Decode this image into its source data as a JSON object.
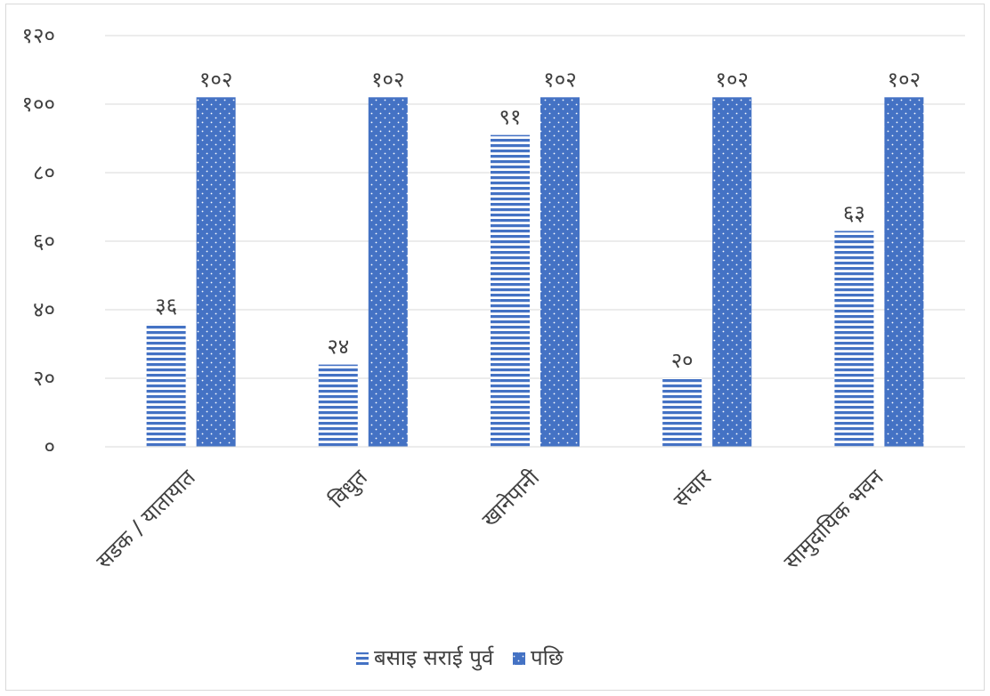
{
  "chart_data": {
    "type": "bar",
    "title": "",
    "xlabel": "",
    "ylabel": "",
    "categories": [
      "सडक / यातायात",
      "विधुत",
      "खानेपानी",
      "संचार",
      "सामुदायिक भवन"
    ],
    "series": [
      {
        "name": "बसाइ सराई पुर्व",
        "values": [
          36,
          24,
          91,
          20,
          63
        ],
        "labels": [
          "३६",
          "२४",
          "९१",
          "२०",
          "६३"
        ],
        "pattern": "horizontal-stripes",
        "color": "#4472C4"
      },
      {
        "name": "पछि",
        "values": [
          102,
          102,
          102,
          102,
          102
        ],
        "labels": [
          "१०२",
          "१०२",
          "१०२",
          "१०२",
          "१०२"
        ],
        "pattern": "dots",
        "color": "#4472C4"
      }
    ],
    "ylim": [
      0,
      120
    ],
    "yticks": [
      0,
      20,
      40,
      60,
      80,
      100,
      120
    ],
    "ytick_labels": [
      "०",
      "२०",
      "४०",
      "६०",
      "८०",
      "१००",
      "१२०"
    ],
    "grid": true,
    "legend_position": "bottom"
  }
}
